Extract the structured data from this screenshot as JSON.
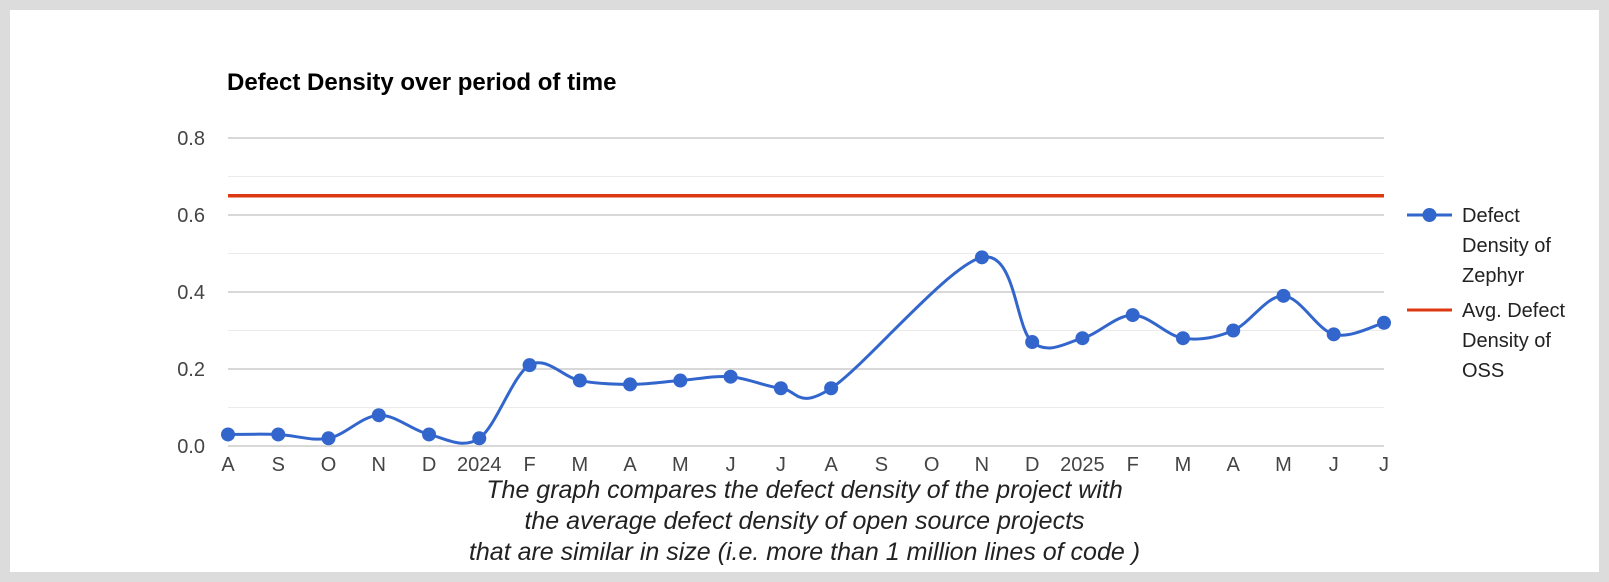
{
  "chart_data": {
    "type": "line",
    "title": "Defect Density over period of time",
    "xlabel": "",
    "ylabel": "",
    "ylim": [
      0,
      0.8
    ],
    "yticks": [
      0.0,
      0.2,
      0.4,
      0.6,
      0.8
    ],
    "ytick_labels": [
      "0.0",
      "0.2",
      "0.4",
      "0.6",
      "0.8"
    ],
    "grid": true,
    "legend_position": "right",
    "categories": [
      "A",
      "S",
      "O",
      "N",
      "D",
      "2024",
      "F",
      "M",
      "A",
      "M",
      "J",
      "J",
      "A",
      "S",
      "O",
      "N",
      "D",
      "2025",
      "F",
      "M",
      "A",
      "M",
      "J",
      "J"
    ],
    "series": [
      {
        "name": "Defect Density of Zephyr",
        "color": "#3366cc",
        "markers": true,
        "points": [
          {
            "x": 0,
            "y": 0.03
          },
          {
            "x": 1,
            "y": 0.03
          },
          {
            "x": 2,
            "y": 0.02
          },
          {
            "x": 3,
            "y": 0.08
          },
          {
            "x": 4,
            "y": 0.03
          },
          {
            "x": 5,
            "y": 0.02
          },
          {
            "x": 6,
            "y": 0.21
          },
          {
            "x": 7,
            "y": 0.17
          },
          {
            "x": 8,
            "y": 0.16
          },
          {
            "x": 9,
            "y": 0.17
          },
          {
            "x": 10,
            "y": 0.18
          },
          {
            "x": 11,
            "y": 0.15
          },
          {
            "x": 12,
            "y": 0.15
          },
          {
            "x": 15,
            "y": 0.49
          },
          {
            "x": 16,
            "y": 0.27
          },
          {
            "x": 17,
            "y": 0.28
          },
          {
            "x": 18,
            "y": 0.34
          },
          {
            "x": 19,
            "y": 0.28
          },
          {
            "x": 20,
            "y": 0.3
          },
          {
            "x": 21,
            "y": 0.39
          },
          {
            "x": 22,
            "y": 0.29
          },
          {
            "x": 23,
            "y": 0.32
          }
        ]
      },
      {
        "name": "Avg. Defect Density of OSS",
        "color": "#dc3912",
        "markers": false,
        "points": [
          {
            "x": 0,
            "y": 0.65
          },
          {
            "x": 23,
            "y": 0.65
          }
        ]
      }
    ]
  },
  "legend": [
    {
      "lines": [
        "Defect",
        "Density of",
        "Zephyr"
      ]
    },
    {
      "lines": [
        "Avg. Defect",
        "Density of",
        "OSS"
      ]
    }
  ],
  "caption": {
    "lines": [
      "The graph compares the defect density of the project with",
      "the average defect density of open source projects",
      "that are similar in size (i.e. more than 1 million lines of code )"
    ]
  }
}
